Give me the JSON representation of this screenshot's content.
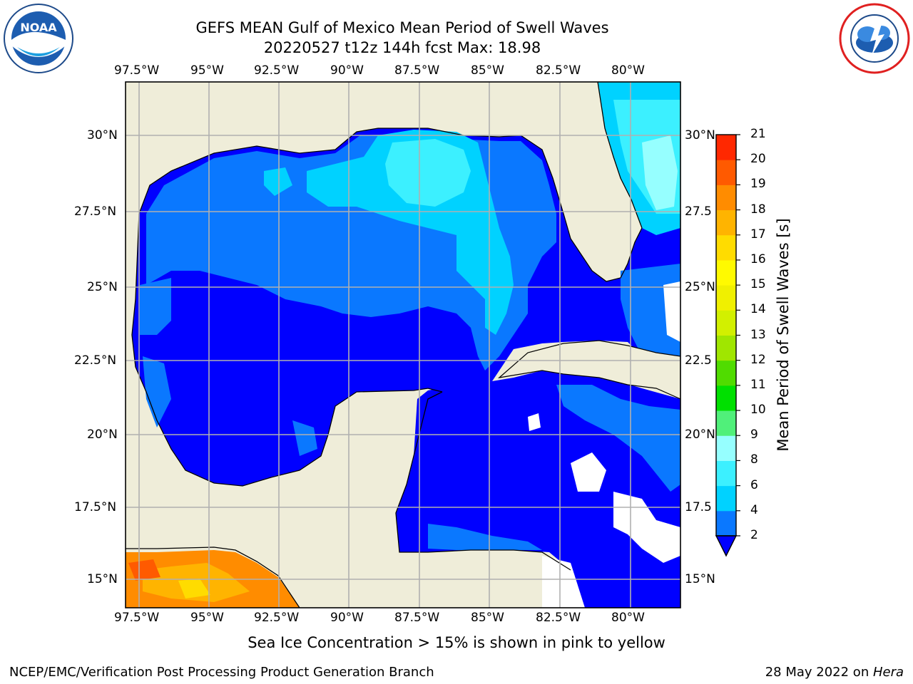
{
  "header": {
    "title_line1": "GEFS MEAN Gulf of Mexico Mean Period of Swell Waves",
    "title_line2": "20220527 t12z 144h fcst   Max: 18.98"
  },
  "map": {
    "lon_labels": [
      "97.5°W",
      "95°W",
      "92.5°W",
      "90°W",
      "87.5°W",
      "85°W",
      "82.5°W",
      "80°W"
    ],
    "lat_labels_left": [
      "30°N",
      "27.5°N",
      "25°N",
      "22.5°N",
      "20°N",
      "17.5°N",
      "15°N"
    ],
    "lat_labels_right": [
      "30°N",
      "27.5",
      "25°N",
      "22.5",
      "20°N",
      "17.5",
      "15°N"
    ],
    "colors": {
      "land": "#efedd9",
      "grid": "#b0b0b0"
    }
  },
  "colorbar": {
    "label": "Mean Period of Swell Waves [s]",
    "ticks": [
      "2",
      "4",
      "6",
      "8",
      "9",
      "10",
      "11",
      "12",
      "13",
      "14",
      "15",
      "16",
      "17",
      "18",
      "19",
      "20",
      "21"
    ],
    "colors": [
      "#0a78ff",
      "#00d2ff",
      "#3cf0ff",
      "#96ffff",
      "#50f07a",
      "#00e000",
      "#50dc00",
      "#a0e600",
      "#d2f000",
      "#f0f000",
      "#fffa00",
      "#ffdc00",
      "#ffb400",
      "#ff8c00",
      "#ff5a00",
      "#ff2800",
      "#ff0000"
    ],
    "extend_color": "#0000ff"
  },
  "note": "Sea Ice Concentration > 15% is shown in pink to yellow",
  "footer": {
    "left": "NCEP/EMC/Verification Post Processing Product Generation Branch",
    "right_date": "28 May 2022 on ",
    "right_host": "Hera"
  },
  "logos": {
    "left": "noaa-logo",
    "right": "nws-logo"
  }
}
